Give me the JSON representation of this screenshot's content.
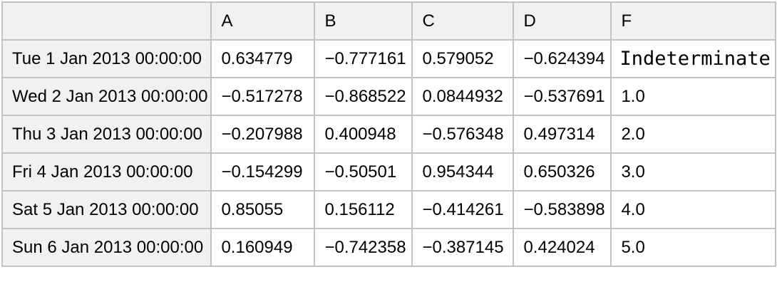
{
  "chart_data": {
    "type": "table",
    "columns": [
      "",
      "A",
      "B",
      "C",
      "D",
      "F"
    ],
    "row_labels": [
      "Tue 1 Jan 2013 00:00:00",
      "Wed 2 Jan 2013 00:00:00",
      "Thu 3 Jan 2013 00:00:00",
      "Fri 4 Jan 2013 00:00:00",
      "Sat 5 Jan 2013 00:00:00",
      "Sun 6 Jan 2013 00:00:00"
    ],
    "rows": [
      [
        "0.634779",
        "−0.777161",
        "0.579052",
        "−0.624394",
        "Indeterminate"
      ],
      [
        "−0.517278",
        "−0.868522",
        "0.0844932",
        "−0.537691",
        "1.0"
      ],
      [
        "−0.207988",
        "0.400948",
        "−0.576348",
        "0.497314",
        "2.0"
      ],
      [
        "−0.154299",
        "−0.50501",
        "0.954344",
        "0.650326",
        "3.0"
      ],
      [
        "0.85055",
        "0.156112",
        "−0.414261",
        "−0.583898",
        "4.0"
      ],
      [
        "0.160949",
        "−0.742358",
        "−0.387145",
        "0.424024",
        "5.0"
      ]
    ],
    "layout": {
      "grid": "on",
      "header_background": "#f1f1f1",
      "row_label_background": "#f1f1f1",
      "cell_background": "#ffffff",
      "grid_border_color": "#c3c3c3",
      "text_color": "#000000"
    }
  }
}
